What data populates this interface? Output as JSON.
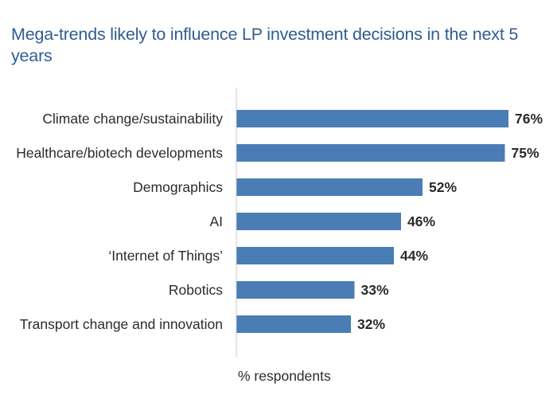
{
  "chart_data": {
    "type": "bar",
    "orientation": "horizontal",
    "title": "Mega-trends likely to influence LP investment decisions in the next 5 years",
    "xlabel": "% respondents",
    "ylabel": "",
    "xlim": [
      0,
      80
    ],
    "grid": false,
    "legend": "none",
    "bar_color": "#4a7db5",
    "categories": [
      "Climate change/sustainability",
      "Healthcare/biotech developments",
      "Demographics",
      "AI",
      "‘Internet of Things’",
      "Robotics",
      "Transport change and innovation"
    ],
    "values": [
      76,
      75,
      52,
      46,
      44,
      33,
      32
    ],
    "value_labels": [
      "76%",
      "75%",
      "52%",
      "46%",
      "44%",
      "33%",
      "32%"
    ]
  }
}
